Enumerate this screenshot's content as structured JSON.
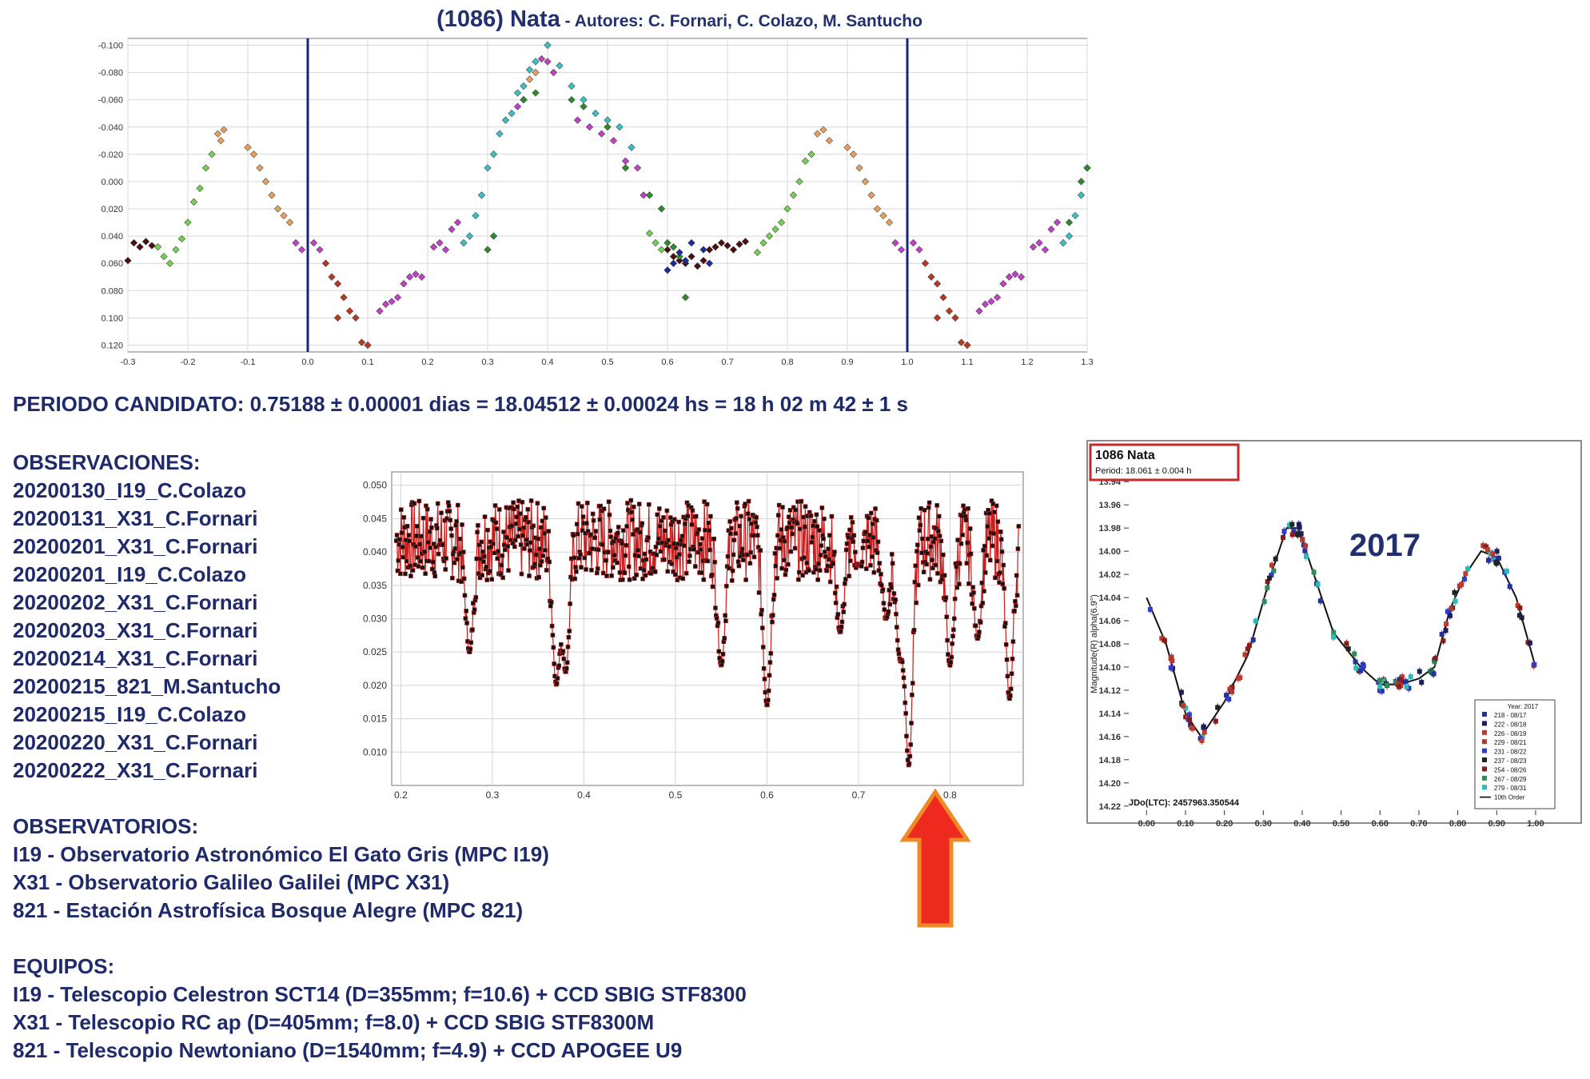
{
  "header": {
    "object": "(1086) Nata",
    "authors": " - Autores: C. Fornari, C. Colazo, M. Santucho"
  },
  "period_text": "PERIODO CANDIDATO: 0.75188 ± 0.00001 dias = 18.04512 ± 0.00024 hs = 18 h 02 m 42 ± 1 s",
  "observaciones": {
    "heading": "OBSERVACIONES:",
    "items": [
      "20200130_I19_C.Colazo",
      "20200131_X31_C.Fornari",
      "20200201_X31_C.Fornari",
      "20200201_I19_C.Colazo",
      "20200202_X31_C.Fornari",
      "20200203_X31_C.Fornari",
      "20200214_X31_C.Fornari",
      "20200215_821_M.Santucho",
      "20200215_I19_C.Colazo",
      "20200220_X31_C.Fornari",
      "20200222_X31_C.Fornari"
    ]
  },
  "observatorios": {
    "heading": "OBSERVATORIOS:",
    "items": [
      "I19 - Observatorio Astronómico El Gato Gris (MPC I19)",
      "X31 - Observatorio Galileo Galilei (MPC X31)",
      "821 - Estación Astrofísica Bosque Alegre (MPC 821)"
    ]
  },
  "equipos": {
    "heading": "EQUIPOS:",
    "items": [
      "I19 - Telescopio Celestron SCT14 (D=355mm; f=10.6) + CCD SBIG STF8300",
      "X31 - Telescopio RC ap (D=405mm; f=8.0) + CCD SBIG STF8300M",
      "821 - Telescopio Newtoniano (D=1540mm; f=4.9) + CCD APOGEE U9"
    ]
  },
  "year_label": "2017",
  "colors": {
    "text": "#1f2a6b",
    "vline": "#1a237e",
    "arrow_fill": "#ee2a1f",
    "arrow_stroke": "#f08a24",
    "box": "#c62828"
  },
  "chart_data": [
    {
      "type": "scatter",
      "title": "",
      "xlabel": "",
      "ylabel": "",
      "xlim": [
        -0.3,
        1.3
      ],
      "ylim": [
        0.125,
        -0.105
      ],
      "y_inverted": true,
      "grid": true,
      "x_ticks": [
        "-0.3",
        "-0.2",
        "-0.1",
        "0.0",
        "0.1",
        "0.2",
        "0.3",
        "0.4",
        "0.5",
        "0.6",
        "0.7",
        "0.8",
        "0.9",
        "1.0",
        "1.1",
        "1.2",
        "1.3"
      ],
      "y_ticks": [
        "-0.100",
        "-0.080",
        "-0.060",
        "-0.040",
        "-0.020",
        "0.000",
        "0.020",
        "0.040",
        "0.060",
        "0.080",
        "0.100",
        "0.120"
      ],
      "vertical_lines": [
        0.0,
        1.0
      ],
      "series": [
        {
          "color": "#4b0f0f",
          "points": [
            [
              -0.29,
              0.045
            ],
            [
              -0.28,
              0.048
            ],
            [
              -0.27,
              0.044
            ],
            [
              -0.26,
              0.047
            ],
            [
              -0.3,
              0.058
            ],
            [
              0.63,
              0.06
            ],
            [
              0.64,
              0.055
            ],
            [
              0.65,
              0.062
            ],
            [
              0.66,
              0.058
            ],
            [
              0.67,
              0.05
            ],
            [
              0.68,
              0.048
            ],
            [
              0.69,
              0.045
            ],
            [
              0.7,
              0.047
            ],
            [
              0.71,
              0.05
            ],
            [
              0.72,
              0.046
            ],
            [
              0.73,
              0.044
            ],
            [
              0.62,
              0.058
            ],
            [
              0.6,
              0.05
            ],
            [
              0.61,
              0.055
            ]
          ]
        },
        {
          "color": "#74d050",
          "points": [
            [
              -0.25,
              0.048
            ],
            [
              -0.24,
              0.055
            ],
            [
              -0.23,
              0.06
            ],
            [
              -0.22,
              0.05
            ],
            [
              -0.21,
              0.042
            ],
            [
              -0.2,
              0.03
            ],
            [
              -0.19,
              0.015
            ],
            [
              -0.18,
              0.005
            ],
            [
              -0.17,
              -0.01
            ],
            [
              -0.16,
              -0.02
            ],
            [
              0.75,
              0.052
            ],
            [
              0.76,
              0.045
            ],
            [
              0.77,
              0.04
            ],
            [
              0.78,
              0.035
            ],
            [
              0.79,
              0.03
            ],
            [
              0.8,
              0.02
            ],
            [
              0.81,
              0.01
            ],
            [
              0.82,
              0.0
            ],
            [
              0.83,
              -0.015
            ],
            [
              0.84,
              -0.02
            ],
            [
              0.58,
              0.045
            ],
            [
              0.59,
              0.05
            ],
            [
              0.57,
              0.038
            ]
          ]
        },
        {
          "color": "#e5a060",
          "points": [
            [
              -0.15,
              -0.035
            ],
            [
              -0.14,
              -0.038
            ],
            [
              -0.145,
              -0.03
            ],
            [
              -0.1,
              -0.025
            ],
            [
              -0.09,
              -0.02
            ],
            [
              -0.08,
              -0.01
            ],
            [
              -0.07,
              0.0
            ],
            [
              -0.06,
              0.01
            ],
            [
              -0.05,
              0.02
            ],
            [
              -0.04,
              0.025
            ],
            [
              -0.03,
              0.03
            ],
            [
              0.85,
              -0.035
            ],
            [
              0.86,
              -0.038
            ],
            [
              0.87,
              -0.03
            ],
            [
              0.9,
              -0.025
            ],
            [
              0.91,
              -0.02
            ],
            [
              0.92,
              -0.01
            ],
            [
              0.93,
              0.0
            ],
            [
              0.94,
              0.01
            ],
            [
              0.95,
              0.02
            ],
            [
              0.96,
              0.025
            ],
            [
              0.97,
              0.03
            ],
            [
              0.37,
              -0.075
            ],
            [
              0.38,
              -0.08
            ]
          ]
        },
        {
          "color": "#c040c8",
          "points": [
            [
              -0.02,
              0.045
            ],
            [
              -0.01,
              0.05
            ],
            [
              0.01,
              0.045
            ],
            [
              0.02,
              0.05
            ],
            [
              0.12,
              0.095
            ],
            [
              0.13,
              0.09
            ],
            [
              0.14,
              0.088
            ],
            [
              0.15,
              0.085
            ],
            [
              0.16,
              0.075
            ],
            [
              0.17,
              0.07
            ],
            [
              0.18,
              0.068
            ],
            [
              0.19,
              0.07
            ],
            [
              0.21,
              0.048
            ],
            [
              0.22,
              0.045
            ],
            [
              0.23,
              0.05
            ],
            [
              0.24,
              0.035
            ],
            [
              0.25,
              0.03
            ],
            [
              0.35,
              -0.055
            ],
            [
              0.36,
              -0.06
            ],
            [
              0.39,
              -0.09
            ],
            [
              0.4,
              -0.088
            ],
            [
              0.41,
              -0.08
            ],
            [
              0.45,
              -0.045
            ],
            [
              0.47,
              -0.04
            ],
            [
              0.49,
              -0.035
            ],
            [
              0.51,
              -0.03
            ],
            [
              0.53,
              -0.015
            ],
            [
              0.55,
              -0.01
            ],
            [
              0.56,
              0.01
            ],
            [
              0.98,
              0.045
            ],
            [
              0.99,
              0.05
            ],
            [
              1.01,
              0.045
            ],
            [
              1.02,
              0.05
            ],
            [
              1.12,
              0.095
            ],
            [
              1.13,
              0.09
            ],
            [
              1.14,
              0.088
            ],
            [
              1.15,
              0.085
            ],
            [
              1.16,
              0.075
            ],
            [
              1.17,
              0.07
            ],
            [
              1.18,
              0.068
            ],
            [
              1.19,
              0.07
            ],
            [
              1.21,
              0.048
            ],
            [
              1.22,
              0.045
            ],
            [
              1.23,
              0.05
            ],
            [
              1.24,
              0.035
            ],
            [
              1.25,
              0.03
            ]
          ]
        },
        {
          "color": "#b83a20",
          "points": [
            [
              0.03,
              0.06
            ],
            [
              0.04,
              0.07
            ],
            [
              0.05,
              0.075
            ],
            [
              0.06,
              0.085
            ],
            [
              0.07,
              0.095
            ],
            [
              0.08,
              0.1
            ],
            [
              0.09,
              0.118
            ],
            [
              0.1,
              0.12
            ],
            [
              1.03,
              0.06
            ],
            [
              1.04,
              0.07
            ],
            [
              1.05,
              0.075
            ],
            [
              1.06,
              0.085
            ],
            [
              1.07,
              0.095
            ],
            [
              1.08,
              0.1
            ],
            [
              1.09,
              0.118
            ],
            [
              1.1,
              0.12
            ],
            [
              0.05,
              0.1
            ],
            [
              1.05,
              0.1
            ]
          ]
        },
        {
          "color": "#3ac2c2",
          "points": [
            [
              0.26,
              0.045
            ],
            [
              0.27,
              0.04
            ],
            [
              0.28,
              0.025
            ],
            [
              0.29,
              0.01
            ],
            [
              0.3,
              -0.01
            ],
            [
              0.31,
              -0.02
            ],
            [
              0.32,
              -0.035
            ],
            [
              0.33,
              -0.045
            ],
            [
              0.34,
              -0.05
            ],
            [
              0.35,
              -0.065
            ],
            [
              0.36,
              -0.07
            ],
            [
              0.37,
              -0.082
            ],
            [
              0.38,
              -0.088
            ],
            [
              0.4,
              -0.1
            ],
            [
              0.42,
              -0.085
            ],
            [
              0.44,
              -0.07
            ],
            [
              0.46,
              -0.06
            ],
            [
              0.48,
              -0.05
            ],
            [
              0.5,
              -0.045
            ],
            [
              0.52,
              -0.04
            ],
            [
              0.54,
              -0.025
            ],
            [
              1.26,
              0.045
            ],
            [
              1.27,
              0.04
            ],
            [
              1.28,
              0.025
            ],
            [
              1.29,
              0.01
            ],
            [
              1.3,
              -0.01
            ]
          ]
        },
        {
          "color": "#2e8b2e",
          "points": [
            [
              0.3,
              0.05
            ],
            [
              0.31,
              0.04
            ],
            [
              0.36,
              -0.06
            ],
            [
              0.38,
              -0.065
            ],
            [
              0.44,
              -0.06
            ],
            [
              0.46,
              -0.055
            ],
            [
              0.5,
              -0.04
            ],
            [
              0.53,
              -0.01
            ],
            [
              0.57,
              0.01
            ],
            [
              0.59,
              0.02
            ],
            [
              0.6,
              0.045
            ],
            [
              0.61,
              0.048
            ],
            [
              0.62,
              0.055
            ],
            [
              0.63,
              0.085
            ],
            [
              1.3,
              -0.01
            ],
            [
              1.29,
              0.0
            ],
            [
              1.27,
              0.03
            ]
          ]
        },
        {
          "color": "#1f2a9c",
          "points": [
            [
              0.61,
              0.06
            ],
            [
              0.62,
              0.052
            ],
            [
              0.64,
              0.045
            ],
            [
              0.66,
              0.05
            ],
            [
              0.67,
              0.06
            ],
            [
              0.6,
              0.065
            ],
            [
              0.63,
              0.058
            ]
          ]
        }
      ]
    },
    {
      "type": "line",
      "title": "",
      "xlabel": "",
      "ylabel": "",
      "xlim": [
        0.19,
        0.88
      ],
      "ylim": [
        0.005,
        0.052
      ],
      "grid": true,
      "x_ticks": [
        "0.2",
        "0.3",
        "0.4",
        "0.5",
        "0.6",
        "0.7",
        "0.8"
      ],
      "y_ticks": [
        "0.050",
        "0.045",
        "0.040",
        "0.035",
        "0.030",
        "0.025",
        "0.020",
        "0.015",
        "0.010"
      ],
      "dips": [
        [
          0.275,
          0.025
        ],
        [
          0.37,
          0.02
        ],
        [
          0.38,
          0.022
        ],
        [
          0.55,
          0.023
        ],
        [
          0.6,
          0.017
        ],
        [
          0.68,
          0.028
        ],
        [
          0.7,
          0.038
        ],
        [
          0.73,
          0.03
        ],
        [
          0.745,
          0.025
        ],
        [
          0.755,
          0.008
        ],
        [
          0.8,
          0.023
        ],
        [
          0.83,
          0.027
        ],
        [
          0.865,
          0.018
        ]
      ],
      "baseline": 0.04,
      "line_color": "#c81e1e",
      "marker_color": "#111111",
      "arrow_x": 0.755
    },
    {
      "type": "line",
      "title": "1086 Nata",
      "subtitle": "Period: 18.061 ± 0.004 h",
      "xlabel": "",
      "ylabel": "Magnitude(R) alpha(6.9°)",
      "footer": "JDo(LTC): 2457963.350544",
      "xlim": [
        -0.05,
        1.07
      ],
      "ylim": [
        14.225,
        13.935
      ],
      "x_ticks": [
        "0.00",
        "0.10",
        "0.20",
        "0.30",
        "0.40",
        "0.50",
        "0.60",
        "0.70",
        "0.80",
        "0.90",
        "1.00"
      ],
      "y_ticks": [
        "13.94",
        "13.96",
        "13.98",
        "14.00",
        "14.02",
        "14.04",
        "14.06",
        "14.08",
        "14.10",
        "14.12",
        "14.14",
        "14.16",
        "14.18",
        "14.20",
        "14.22"
      ],
      "fit": [
        [
          0.0,
          14.04
        ],
        [
          0.05,
          14.08
        ],
        [
          0.1,
          14.14
        ],
        [
          0.14,
          14.16
        ],
        [
          0.2,
          14.13
        ],
        [
          0.26,
          14.09
        ],
        [
          0.32,
          14.02
        ],
        [
          0.36,
          13.98
        ],
        [
          0.39,
          13.98
        ],
        [
          0.42,
          14.01
        ],
        [
          0.48,
          14.07
        ],
        [
          0.55,
          14.1
        ],
        [
          0.6,
          14.115
        ],
        [
          0.65,
          14.115
        ],
        [
          0.7,
          14.11
        ],
        [
          0.74,
          14.1
        ],
        [
          0.78,
          14.05
        ],
        [
          0.82,
          14.02
        ],
        [
          0.86,
          14.0
        ],
        [
          0.9,
          14.005
        ],
        [
          0.95,
          14.04
        ],
        [
          1.0,
          14.1
        ]
      ],
      "legend": {
        "title": "Year: 2017",
        "entries": [
          "218 - 08/17",
          "222 - 08/18",
          "226 - 08/19",
          "229 - 08/21",
          "231 - 08/22",
          "237 - 08/23",
          "254 - 08/26",
          "267 - 08/29",
          "279 - 08/31",
          "10th Order"
        ],
        "colors": [
          "#2230a0",
          "#1a1f5c",
          "#c0392b",
          "#b03a2e",
          "#2e3cc8",
          "#222222",
          "#8b1a1a",
          "#2e8b57",
          "#2eb8b8",
          "#000000"
        ]
      }
    }
  ]
}
